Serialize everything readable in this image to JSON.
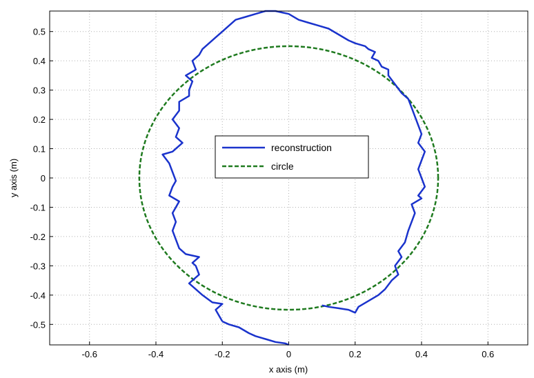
{
  "chart_data": {
    "type": "line",
    "xlabel": "x axis (m)",
    "ylabel": "y axis (m)",
    "xlim": [
      -0.72,
      0.72
    ],
    "ylim": [
      -0.57,
      0.57
    ],
    "grid": true,
    "legend_position": "center",
    "x_ticks": [
      "-0.6",
      "-0.4",
      "-0.2",
      "0",
      "0.2",
      "0.4",
      "0.6"
    ],
    "x_tick_values": [
      -0.6,
      -0.4,
      -0.2,
      0,
      0.2,
      0.4,
      0.6
    ],
    "y_ticks": [
      "0.5",
      "0.4",
      "0.3",
      "0.2",
      "0.1",
      "0",
      "-0.1",
      "-0.2",
      "-0.3",
      "-0.4",
      "-0.5"
    ],
    "y_tick_values": [
      0.5,
      0.4,
      0.3,
      0.2,
      0.1,
      0,
      -0.1,
      -0.2,
      -0.3,
      -0.4,
      -0.5
    ],
    "series": [
      {
        "name": "reconstruction",
        "color": "#1a33cc",
        "style": "solid",
        "points": [
          [
            -0.2,
            -0.49
          ],
          [
            -0.18,
            -0.5
          ],
          [
            -0.15,
            -0.51
          ],
          [
            -0.12,
            -0.53
          ],
          [
            -0.1,
            -0.54
          ],
          [
            -0.07,
            -0.55
          ],
          [
            -0.04,
            -0.56
          ],
          [
            -0.01,
            -0.565
          ],
          [
            0.0,
            -0.57
          ],
          [
            -0.2,
            -0.49
          ],
          [
            -0.21,
            -0.47
          ],
          [
            -0.22,
            -0.45
          ],
          [
            -0.2,
            -0.43
          ],
          [
            -0.23,
            -0.425
          ],
          [
            -0.26,
            -0.4
          ],
          [
            -0.28,
            -0.38
          ],
          [
            -0.3,
            -0.36
          ],
          [
            -0.27,
            -0.33
          ],
          [
            -0.28,
            -0.3
          ],
          [
            -0.29,
            -0.29
          ],
          [
            -0.27,
            -0.27
          ],
          [
            -0.31,
            -0.26
          ],
          [
            -0.33,
            -0.24
          ],
          [
            -0.34,
            -0.21
          ],
          [
            -0.35,
            -0.18
          ],
          [
            -0.34,
            -0.15
          ],
          [
            -0.35,
            -0.12
          ],
          [
            -0.33,
            -0.08
          ],
          [
            -0.36,
            -0.06
          ],
          [
            -0.35,
            -0.03
          ],
          [
            -0.34,
            -0.01
          ],
          [
            -0.35,
            0.02
          ],
          [
            -0.36,
            0.05
          ],
          [
            -0.38,
            0.08
          ],
          [
            -0.35,
            0.09
          ],
          [
            -0.33,
            0.11
          ],
          [
            -0.32,
            0.12
          ],
          [
            -0.34,
            0.14
          ],
          [
            -0.33,
            0.17
          ],
          [
            -0.35,
            0.2
          ],
          [
            -0.33,
            0.23
          ],
          [
            -0.33,
            0.26
          ],
          [
            -0.3,
            0.28
          ],
          [
            -0.3,
            0.3
          ],
          [
            -0.29,
            0.33
          ],
          [
            -0.31,
            0.35
          ],
          [
            -0.28,
            0.37
          ],
          [
            -0.29,
            0.4
          ],
          [
            -0.27,
            0.42
          ],
          [
            -0.26,
            0.44
          ],
          [
            -0.24,
            0.46
          ],
          [
            -0.22,
            0.48
          ],
          [
            -0.2,
            0.5
          ],
          [
            -0.18,
            0.52
          ],
          [
            -0.16,
            0.54
          ],
          [
            -0.13,
            0.55
          ],
          [
            -0.1,
            0.56
          ],
          [
            -0.07,
            0.57
          ],
          [
            -0.04,
            0.57
          ],
          [
            -0.02,
            0.565
          ],
          [
            0.0,
            0.56
          ],
          [
            0.03,
            0.54
          ],
          [
            0.06,
            0.53
          ],
          [
            0.09,
            0.52
          ],
          [
            0.12,
            0.51
          ],
          [
            0.15,
            0.49
          ],
          [
            0.18,
            0.47
          ],
          [
            0.2,
            0.46
          ],
          [
            0.23,
            0.45
          ],
          [
            0.24,
            0.44
          ],
          [
            0.26,
            0.43
          ],
          [
            0.25,
            0.41
          ],
          [
            0.27,
            0.4
          ],
          [
            0.28,
            0.38
          ],
          [
            0.3,
            0.37
          ],
          [
            0.3,
            0.35
          ],
          [
            0.32,
            0.32
          ],
          [
            0.34,
            0.29
          ],
          [
            0.36,
            0.27
          ],
          [
            0.37,
            0.24
          ],
          [
            0.38,
            0.21
          ],
          [
            0.39,
            0.18
          ],
          [
            0.4,
            0.15
          ],
          [
            0.39,
            0.12
          ],
          [
            0.41,
            0.09
          ],
          [
            0.4,
            0.06
          ],
          [
            0.39,
            0.03
          ],
          [
            0.4,
            0.0
          ],
          [
            0.41,
            -0.03
          ],
          [
            0.39,
            -0.06
          ],
          [
            0.4,
            -0.07
          ],
          [
            0.37,
            -0.09
          ],
          [
            0.38,
            -0.12
          ],
          [
            0.37,
            -0.15
          ],
          [
            0.36,
            -0.18
          ],
          [
            0.35,
            -0.22
          ],
          [
            0.33,
            -0.25
          ],
          [
            0.34,
            -0.27
          ],
          [
            0.32,
            -0.3
          ],
          [
            0.33,
            -0.33
          ],
          [
            0.31,
            -0.35
          ],
          [
            0.29,
            -0.38
          ],
          [
            0.27,
            -0.4
          ],
          [
            0.24,
            -0.42
          ],
          [
            0.21,
            -0.44
          ],
          [
            0.2,
            -0.46
          ],
          [
            0.18,
            -0.45
          ],
          [
            0.15,
            -0.445
          ],
          [
            0.12,
            -0.44
          ],
          [
            0.1,
            -0.435
          ]
        ]
      },
      {
        "name": "circle",
        "color": "#1f7a1f",
        "style": "dashed",
        "center": [
          0,
          0
        ],
        "radius": 0.45
      }
    ]
  }
}
